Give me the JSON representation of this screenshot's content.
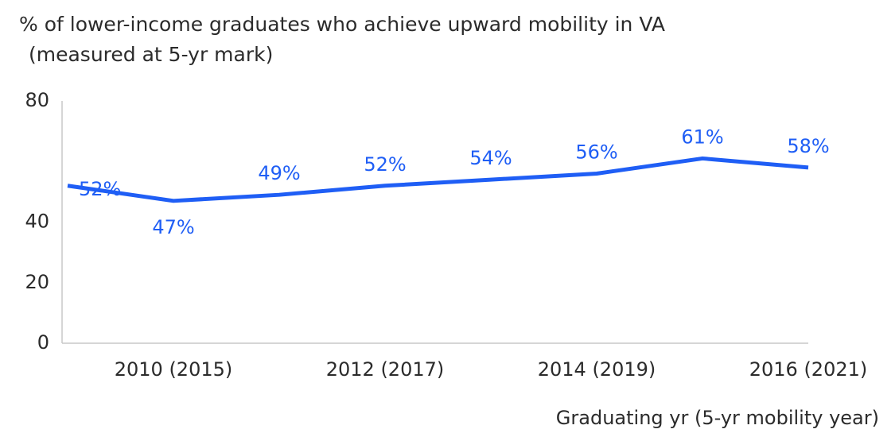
{
  "chart_data": {
    "type": "line",
    "title": "% of lower-income graduates who achieve upward mobility in VA",
    "subtitle": "(measured at 5-yr mark)",
    "x_label": "Graduating yr (5-yr mobility year)",
    "categories": [
      null,
      "2010 (2015)",
      null,
      "2012 (2017)",
      null,
      "2014 (2019)",
      null,
      "2016 (2021)"
    ],
    "series": [
      {
        "name": "Upward mobility",
        "color": "#1f5ef5",
        "values": [
          52,
          47,
          49,
          52,
          54,
          56,
          61,
          58
        ],
        "value_labels": [
          "52%",
          "47%",
          "49%",
          "52%",
          "54%",
          "56%",
          "61%",
          "58%"
        ]
      }
    ],
    "ylim": [
      0,
      80
    ],
    "yticks": [
      0,
      20,
      40,
      80
    ],
    "grid": false
  }
}
